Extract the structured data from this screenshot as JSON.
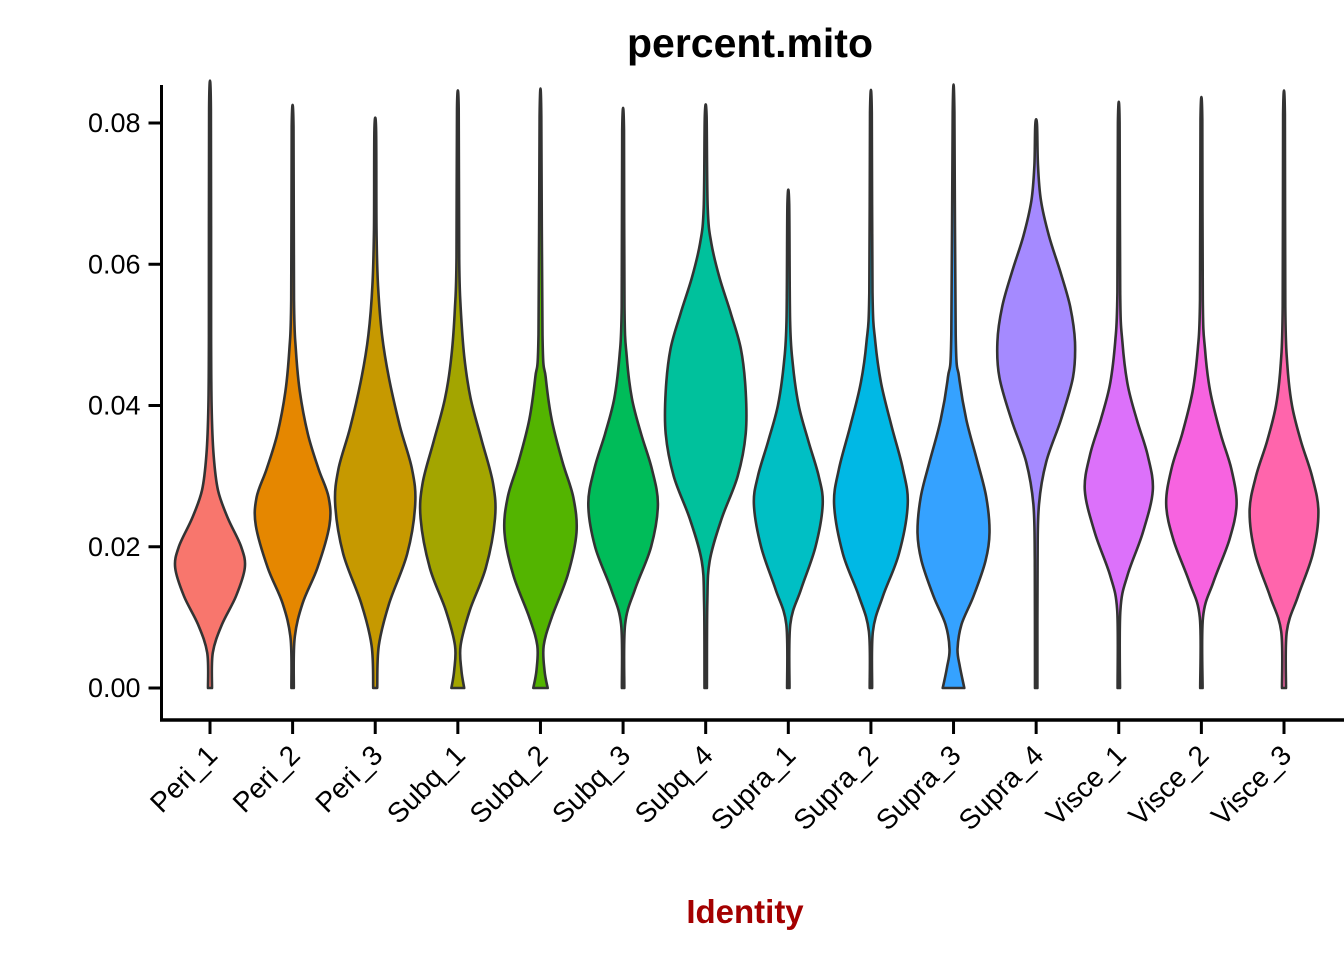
{
  "title": "percent.mito",
  "colors": {
    "title": "#000000",
    "x_axis_title": "#A40000",
    "axis_line": "#000000",
    "violin_stroke": "#333333",
    "background": "#FFFFFF"
  },
  "chart_data": {
    "type": "violin",
    "title": "percent.mito",
    "xlabel": "Identity",
    "ylabel": "",
    "ylim": [
      0,
      0.082
    ],
    "yticks": [
      0.0,
      0.02,
      0.04,
      0.06,
      0.08
    ],
    "ytick_labels": [
      "0.00",
      "0.02",
      "0.04",
      "0.06",
      "0.08"
    ],
    "grid": "off",
    "legend": "none",
    "categories": [
      "Peri_1",
      "Peri_2",
      "Peri_3",
      "Subq_1",
      "Subq_2",
      "Subq_3",
      "Subq_4",
      "Supra_1",
      "Supra_2",
      "Supra_3",
      "Supra_4",
      "Visce_1",
      "Visce_2",
      "Visce_3"
    ],
    "series": [
      {
        "name": "Peri_1",
        "color": "#F8766D",
        "mode": 0.017,
        "max": 0.082,
        "profile": [
          [
            0,
            0.05
          ],
          [
            0.005,
            0.07
          ],
          [
            0.009,
            0.3
          ],
          [
            0.013,
            0.65
          ],
          [
            0.017,
            0.87
          ],
          [
            0.02,
            0.78
          ],
          [
            0.024,
            0.45
          ],
          [
            0.028,
            0.2
          ],
          [
            0.033,
            0.09
          ],
          [
            0.04,
            0.04
          ],
          [
            0.05,
            0.027
          ],
          [
            0.082,
            0.022
          ]
        ]
      },
      {
        "name": "Peri_2",
        "color": "#E58700",
        "mode": 0.025,
        "max": 0.0795,
        "profile": [
          [
            0,
            0.03
          ],
          [
            0.007,
            0.05
          ],
          [
            0.012,
            0.25
          ],
          [
            0.017,
            0.62
          ],
          [
            0.023,
            0.92
          ],
          [
            0.027,
            0.9
          ],
          [
            0.031,
            0.65
          ],
          [
            0.036,
            0.38
          ],
          [
            0.042,
            0.18
          ],
          [
            0.048,
            0.08
          ],
          [
            0.055,
            0.035
          ],
          [
            0.0795,
            0.022
          ]
        ]
      },
      {
        "name": "Peri_3",
        "color": "#C69900",
        "mode": 0.027,
        "max": 0.079,
        "profile": [
          [
            0,
            0.05
          ],
          [
            0.006,
            0.09
          ],
          [
            0.012,
            0.35
          ],
          [
            0.019,
            0.8
          ],
          [
            0.026,
            1.0
          ],
          [
            0.031,
            0.92
          ],
          [
            0.037,
            0.62
          ],
          [
            0.044,
            0.34
          ],
          [
            0.05,
            0.17
          ],
          [
            0.057,
            0.07
          ],
          [
            0.065,
            0.032
          ],
          [
            0.079,
            0.022
          ]
        ]
      },
      {
        "name": "Subq_1",
        "color": "#A3A500",
        "mode": 0.024,
        "max": 0.082,
        "profile": [
          [
            0,
            0.16
          ],
          [
            0.0025,
            0.09
          ],
          [
            0.006,
            0.07
          ],
          [
            0.011,
            0.3
          ],
          [
            0.017,
            0.7
          ],
          [
            0.024,
            0.93
          ],
          [
            0.029,
            0.88
          ],
          [
            0.035,
            0.6
          ],
          [
            0.041,
            0.32
          ],
          [
            0.047,
            0.16
          ],
          [
            0.054,
            0.07
          ],
          [
            0.061,
            0.033
          ],
          [
            0.082,
            0.022
          ]
        ]
      },
      {
        "name": "Subq_2",
        "color": "#53B400",
        "mode": 0.022,
        "max": 0.081,
        "profile": [
          [
            0,
            0.18
          ],
          [
            0.0025,
            0.1
          ],
          [
            0.006,
            0.08
          ],
          [
            0.01,
            0.28
          ],
          [
            0.016,
            0.68
          ],
          [
            0.022,
            0.9
          ],
          [
            0.027,
            0.82
          ],
          [
            0.032,
            0.55
          ],
          [
            0.038,
            0.28
          ],
          [
            0.044,
            0.13
          ],
          [
            0.05,
            0.05
          ],
          [
            0.081,
            0.022
          ]
        ]
      },
      {
        "name": "Subq_3",
        "color": "#00BC59",
        "mode": 0.026,
        "max": 0.079,
        "profile": [
          [
            0,
            0.03
          ],
          [
            0.009,
            0.05
          ],
          [
            0.014,
            0.3
          ],
          [
            0.02,
            0.7
          ],
          [
            0.026,
            0.87
          ],
          [
            0.031,
            0.72
          ],
          [
            0.036,
            0.45
          ],
          [
            0.041,
            0.22
          ],
          [
            0.047,
            0.09
          ],
          [
            0.054,
            0.035
          ],
          [
            0.079,
            0.022
          ]
        ]
      },
      {
        "name": "Subq_4",
        "color": "#00C19C",
        "mode": 0.038,
        "max": 0.081,
        "profile": [
          [
            0,
            0.03
          ],
          [
            0.012,
            0.04
          ],
          [
            0.018,
            0.1
          ],
          [
            0.024,
            0.4
          ],
          [
            0.03,
            0.8
          ],
          [
            0.036,
            1.0
          ],
          [
            0.042,
            1.0
          ],
          [
            0.048,
            0.88
          ],
          [
            0.053,
            0.63
          ],
          [
            0.058,
            0.35
          ],
          [
            0.063,
            0.14
          ],
          [
            0.068,
            0.05
          ],
          [
            0.081,
            0.022
          ]
        ]
      },
      {
        "name": "Supra_1",
        "color": "#00BFC4",
        "mode": 0.026,
        "max": 0.0685,
        "profile": [
          [
            0,
            0.03
          ],
          [
            0.009,
            0.05
          ],
          [
            0.014,
            0.32
          ],
          [
            0.02,
            0.68
          ],
          [
            0.026,
            0.86
          ],
          [
            0.03,
            0.76
          ],
          [
            0.035,
            0.5
          ],
          [
            0.04,
            0.26
          ],
          [
            0.046,
            0.11
          ],
          [
            0.052,
            0.045
          ],
          [
            0.0685,
            0.022
          ]
        ]
      },
      {
        "name": "Supra_2",
        "color": "#00B8E5",
        "mode": 0.026,
        "max": 0.0815,
        "profile": [
          [
            0,
            0.03
          ],
          [
            0.008,
            0.05
          ],
          [
            0.013,
            0.3
          ],
          [
            0.019,
            0.7
          ],
          [
            0.026,
            0.92
          ],
          [
            0.031,
            0.8
          ],
          [
            0.037,
            0.52
          ],
          [
            0.043,
            0.26
          ],
          [
            0.049,
            0.11
          ],
          [
            0.056,
            0.04
          ],
          [
            0.0815,
            0.022
          ]
        ]
      },
      {
        "name": "Supra_3",
        "color": "#35A2FF",
        "mode": 0.022,
        "max": 0.0815,
        "profile": [
          [
            0,
            0.27
          ],
          [
            0.003,
            0.16
          ],
          [
            0.0055,
            0.1
          ],
          [
            0.009,
            0.2
          ],
          [
            0.013,
            0.5
          ],
          [
            0.018,
            0.8
          ],
          [
            0.022,
            0.9
          ],
          [
            0.027,
            0.82
          ],
          [
            0.032,
            0.6
          ],
          [
            0.038,
            0.32
          ],
          [
            0.044,
            0.14
          ],
          [
            0.05,
            0.055
          ],
          [
            0.0815,
            0.022
          ]
        ]
      },
      {
        "name": "Supra_4",
        "color": "#A58AFF",
        "mode": 0.049,
        "max": 0.0798,
        "profile": [
          [
            0,
            0.03
          ],
          [
            0.018,
            0.035
          ],
          [
            0.026,
            0.07
          ],
          [
            0.032,
            0.25
          ],
          [
            0.038,
            0.62
          ],
          [
            0.044,
            0.92
          ],
          [
            0.049,
            0.97
          ],
          [
            0.054,
            0.85
          ],
          [
            0.059,
            0.6
          ],
          [
            0.064,
            0.32
          ],
          [
            0.069,
            0.12
          ],
          [
            0.074,
            0.045
          ],
          [
            0.0798,
            0.022
          ]
        ]
      },
      {
        "name": "Visce_1",
        "color": "#DC71FA",
        "mode": 0.028,
        "max": 0.08,
        "profile": [
          [
            0,
            0.03
          ],
          [
            0.011,
            0.04
          ],
          [
            0.016,
            0.22
          ],
          [
            0.022,
            0.6
          ],
          [
            0.028,
            0.85
          ],
          [
            0.033,
            0.72
          ],
          [
            0.038,
            0.45
          ],
          [
            0.043,
            0.22
          ],
          [
            0.049,
            0.09
          ],
          [
            0.056,
            0.035
          ],
          [
            0.08,
            0.022
          ]
        ]
      },
      {
        "name": "Visce_2",
        "color": "#F763E0",
        "mode": 0.026,
        "max": 0.0805,
        "profile": [
          [
            0,
            0.03
          ],
          [
            0.01,
            0.04
          ],
          [
            0.015,
            0.3
          ],
          [
            0.021,
            0.7
          ],
          [
            0.026,
            0.88
          ],
          [
            0.031,
            0.75
          ],
          [
            0.036,
            0.48
          ],
          [
            0.042,
            0.22
          ],
          [
            0.048,
            0.09
          ],
          [
            0.055,
            0.035
          ],
          [
            0.0805,
            0.022
          ]
        ]
      },
      {
        "name": "Visce_3",
        "color": "#FF65AC",
        "mode": 0.025,
        "max": 0.0812,
        "profile": [
          [
            0,
            0.05
          ],
          [
            0.008,
            0.07
          ],
          [
            0.013,
            0.35
          ],
          [
            0.019,
            0.72
          ],
          [
            0.025,
            0.86
          ],
          [
            0.03,
            0.7
          ],
          [
            0.035,
            0.42
          ],
          [
            0.04,
            0.2
          ],
          [
            0.046,
            0.08
          ],
          [
            0.054,
            0.032
          ],
          [
            0.0812,
            0.022
          ]
        ]
      }
    ]
  }
}
